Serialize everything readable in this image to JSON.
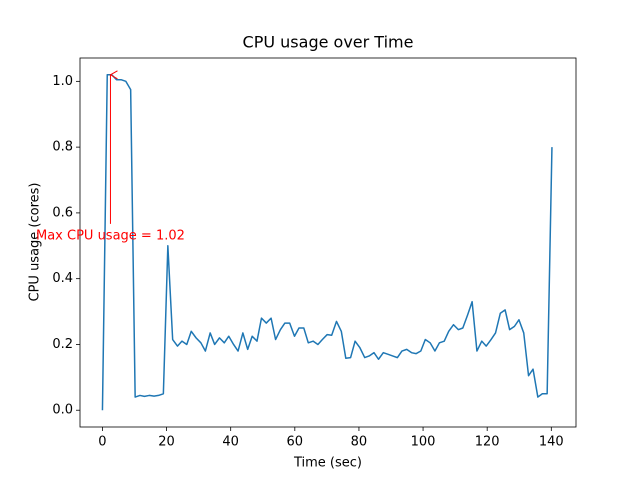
{
  "chart_data": {
    "type": "line",
    "title": "CPU usage over Time",
    "x_label": "Time (sec)",
    "y_label": "CPU usage (cores)",
    "color": "#1f77b4",
    "x": [
      0,
      1.5,
      2.9,
      4.4,
      5.8,
      7.3,
      8.8,
      10.2,
      11.7,
      13.1,
      14.6,
      16.1,
      17.5,
      19,
      20.4,
      21.9,
      23.4,
      24.8,
      26.3,
      27.7,
      29.2,
      30.7,
      32.1,
      33.6,
      35,
      36.5,
      38,
      39.4,
      40.9,
      42.3,
      43.8,
      45.3,
      46.7,
      48.2,
      49.6,
      51.1,
      52.6,
      54,
      55.5,
      56.9,
      58.4,
      59.9,
      61.3,
      62.8,
      64.2,
      65.7,
      67.2,
      68.6,
      70.1,
      71.5,
      73,
      74.5,
      75.9,
      77.4,
      78.8,
      80.3,
      81.8,
      83.2,
      84.7,
      86.1,
      87.6,
      89.1,
      90.5,
      92,
      93.4,
      94.9,
      96.4,
      97.8,
      99.3,
      100.7,
      102.2,
      103.7,
      105.1,
      106.6,
      108,
      109.5,
      111,
      112.4,
      113.9,
      115.3,
      116.8,
      118.3,
      119.7,
      121.2,
      122.6,
      124.1,
      125.6,
      127,
      128.5,
      129.9,
      131.4,
      132.9,
      134.3,
      135.8,
      137.2,
      138.7,
      140.2
    ],
    "values": [
      0,
      1.02,
      1.02,
      1.005,
      1.005,
      1.0,
      0.975,
      0.04,
      0.045,
      0.042,
      0.045,
      0.043,
      0.045,
      0.05,
      0.5,
      0.215,
      0.195,
      0.21,
      0.2,
      0.24,
      0.22,
      0.205,
      0.18,
      0.235,
      0.2,
      0.22,
      0.205,
      0.225,
      0.2,
      0.18,
      0.235,
      0.185,
      0.225,
      0.21,
      0.28,
      0.265,
      0.28,
      0.215,
      0.245,
      0.265,
      0.265,
      0.225,
      0.25,
      0.25,
      0.205,
      0.21,
      0.2,
      0.215,
      0.23,
      0.228,
      0.27,
      0.24,
      0.158,
      0.16,
      0.21,
      0.19,
      0.16,
      0.165,
      0.175,
      0.155,
      0.175,
      0.17,
      0.165,
      0.16,
      0.18,
      0.185,
      0.175,
      0.172,
      0.18,
      0.215,
      0.205,
      0.18,
      0.205,
      0.21,
      0.24,
      0.26,
      0.245,
      0.25,
      0.29,
      0.33,
      0.18,
      0.21,
      0.195,
      0.215,
      0.235,
      0.295,
      0.305,
      0.245,
      0.255,
      0.275,
      0.235,
      0.105,
      0.125,
      0.04,
      0.05,
      0.05,
      0.8
    ],
    "xlim": [
      -7,
      147.7
    ],
    "xticks": [
      0,
      20,
      40,
      60,
      80,
      100,
      120,
      140
    ],
    "ylim": [
      -0.051,
      1.071
    ],
    "yticks": [
      {
        "value": 0,
        "label": "0.0"
      },
      0.2,
      0.4,
      0.6,
      0.8,
      {
        "value": 1,
        "label": "1.0"
      }
    ],
    "annotation": {
      "text": "Max CPU usage = 1.02",
      "xy": [
        2.5,
        1.02
      ],
      "xytext": [
        2.5,
        0.53
      ],
      "color": "red"
    }
  }
}
